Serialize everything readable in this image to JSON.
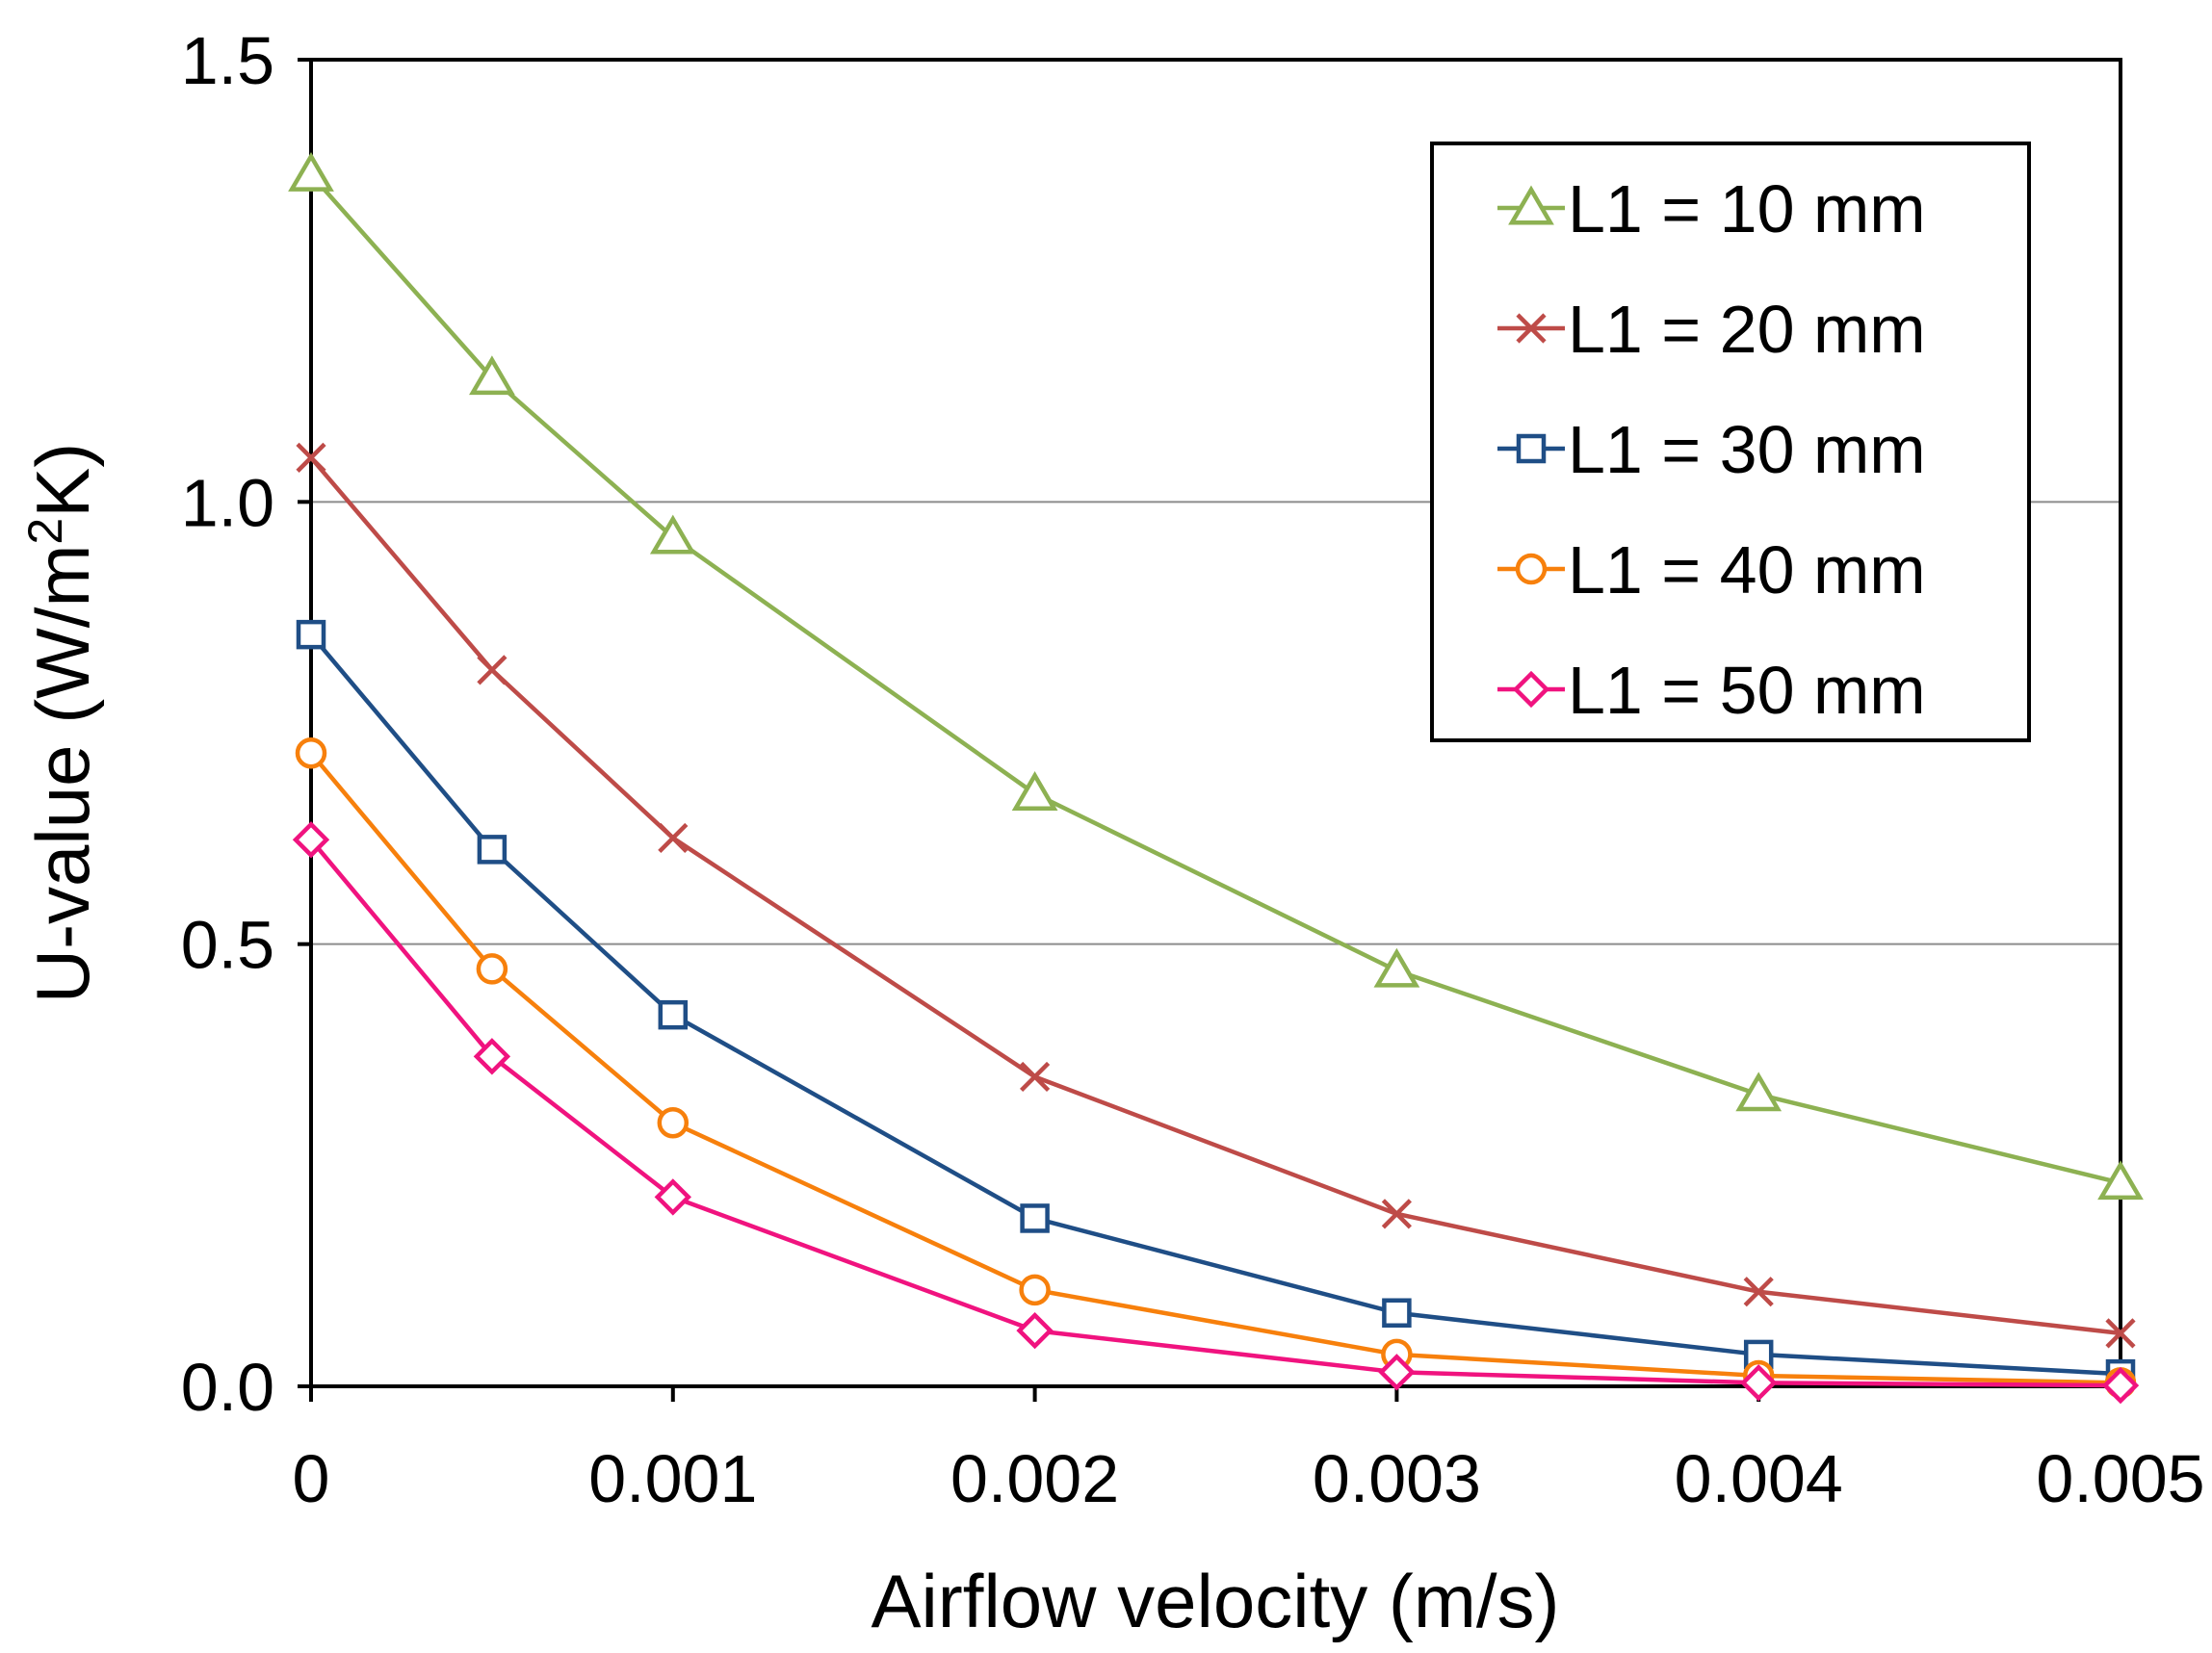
{
  "chart_data": {
    "type": "line",
    "title": "",
    "xlabel": "Airflow velocity (m/s)",
    "ylabel_main": "U-value (W/m",
    "ylabel_sup": "2",
    "ylabel_end": "K)",
    "xlim": [
      0,
      0.005
    ],
    "ylim": [
      0,
      1.5
    ],
    "x": [
      0,
      0.0005,
      0.001,
      0.002,
      0.003,
      0.004,
      0.005
    ],
    "xticks": [
      {
        "value": 0,
        "label": "0"
      },
      {
        "value": 0.001,
        "label": "0.001"
      },
      {
        "value": 0.002,
        "label": "0.002"
      },
      {
        "value": 0.003,
        "label": "0.003"
      },
      {
        "value": 0.004,
        "label": "0.004"
      },
      {
        "value": 0.005,
        "label": "0.005"
      }
    ],
    "yticks": [
      {
        "value": 0,
        "label": "0.0"
      },
      {
        "value": 0.5,
        "label": "0.5"
      },
      {
        "value": 1.0,
        "label": "1.0"
      },
      {
        "value": 1.5,
        "label": "1.5"
      }
    ],
    "grid": "horizontal",
    "legend_position": "top-right",
    "series": [
      {
        "name": "L1 = 10 mm",
        "color": "#8DB152",
        "marker": "triangle",
        "values": [
          1.37,
          1.14,
          0.96,
          0.67,
          0.47,
          0.33,
          0.23
        ]
      },
      {
        "name": "L1 = 20 mm",
        "color": "#BE4B48",
        "marker": "x",
        "values": [
          1.05,
          0.81,
          0.62,
          0.35,
          0.195,
          0.107,
          0.06
        ]
      },
      {
        "name": "L1 = 30 mm",
        "color": "#1F4E86",
        "marker": "square",
        "values": [
          0.85,
          0.607,
          0.42,
          0.19,
          0.083,
          0.036,
          0.014
        ]
      },
      {
        "name": "L1 = 40 mm",
        "color": "#F7800C",
        "marker": "circle",
        "values": [
          0.716,
          0.472,
          0.298,
          0.109,
          0.036,
          0.012,
          0.004
        ]
      },
      {
        "name": "L1 = 50 mm",
        "color": "#F0137F",
        "marker": "diamond",
        "values": [
          0.618,
          0.373,
          0.214,
          0.063,
          0.016,
          0.004,
          0.001
        ]
      }
    ]
  }
}
